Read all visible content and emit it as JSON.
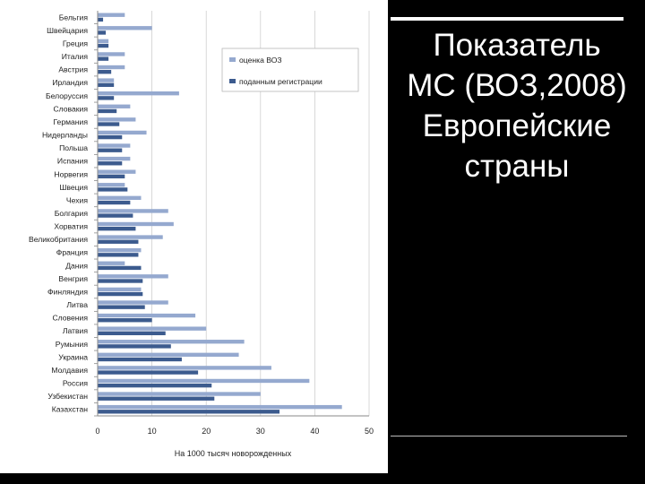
{
  "slide": {
    "title_lines": [
      "Показатель",
      "МС (ВОЗ,2008)",
      "Европейские",
      "страны"
    ]
  },
  "chart_data": {
    "type": "bar",
    "orientation": "horizontal",
    "title": "",
    "xlabel": "На 1000 тысяч новорожденных",
    "ylabel": "",
    "xlim": [
      0,
      50
    ],
    "xticks": [
      0,
      10,
      20,
      30,
      40,
      50
    ],
    "grid": true,
    "legend_position": "top-right",
    "categories": [
      "Бельгия",
      "Швейцария",
      "Греция",
      "Италия",
      "Австрия",
      "Ирландия",
      "Белоруссия",
      "Словакия",
      "Германия",
      "Нидерланды",
      "Польша",
      "Испания",
      "Норвегия",
      "Швеция",
      "Чехия",
      "Болгария",
      "Хорватия",
      "Великобритания",
      "Франция",
      "Дания",
      "Венгрия",
      "Финляндия",
      "Литва",
      "Словения",
      "Латвия",
      "Румыния",
      "Украина",
      "Молдавия",
      "Россия",
      "Узбекистан",
      "Казахстан"
    ],
    "series": [
      {
        "name": "оценка ВОЗ",
        "color": "#95a9cf",
        "values": [
          5,
          10,
          2,
          5,
          5,
          3,
          15,
          6,
          7,
          9,
          6,
          6,
          7,
          5,
          8,
          13,
          14,
          12,
          8,
          5,
          13,
          8,
          13,
          18,
          20,
          27,
          26,
          32,
          39,
          30,
          45
        ]
      },
      {
        "name": "поданным регистрации",
        "color": "#3c5b8e",
        "values": [
          1,
          1.5,
          2,
          2,
          2.5,
          3,
          3,
          3.5,
          4,
          4.5,
          4.5,
          4.5,
          5,
          5.5,
          6,
          6.5,
          7,
          7.5,
          7.5,
          8,
          8.3,
          8.3,
          8.7,
          10,
          12.5,
          13.5,
          15.5,
          18.5,
          21,
          21.5,
          33.5
        ]
      }
    ]
  }
}
